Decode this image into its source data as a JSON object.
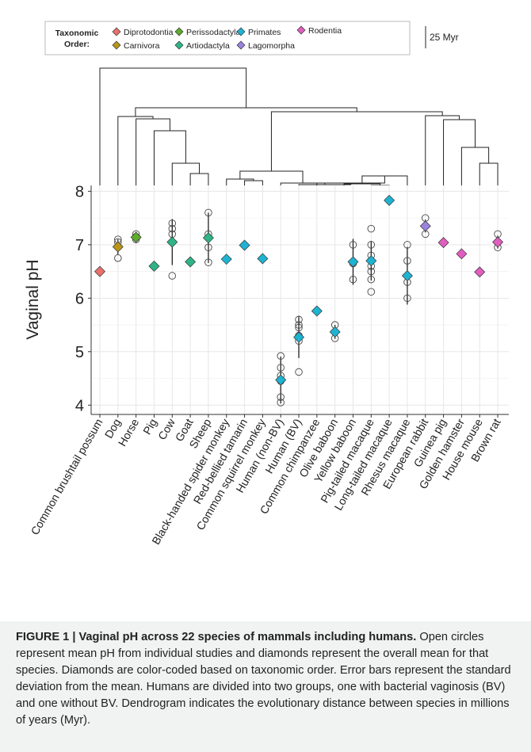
{
  "legend": {
    "title_line1": "Taxonomic",
    "title_line2": "Order:",
    "items": [
      {
        "label": "Diprotodontia",
        "color": "#e8716d"
      },
      {
        "label": "Carnivora",
        "color": "#b8961a"
      },
      {
        "label": "Perissodactyla",
        "color": "#5eab2e"
      },
      {
        "label": "Artiodactyla",
        "color": "#2eb585"
      },
      {
        "label": "Primates",
        "color": "#1fb3d2"
      },
      {
        "label": "Lagomorpha",
        "color": "#9b82dc"
      },
      {
        "label": "Rodentia",
        "color": "#e05ec0"
      }
    ],
    "scale_label": "25 Myr"
  },
  "chart_data": {
    "type": "scatter",
    "title": "",
    "xlabel": "",
    "ylabel": "Vaginal pH",
    "ylim": [
      3.9,
      8.05
    ],
    "yticks": [
      4,
      5,
      6,
      7,
      8
    ],
    "grid": true,
    "categories": [
      "Common brushtail possum",
      "Dog",
      "Horse",
      "Pig",
      "Cow",
      "Goat",
      "Sheep",
      "Black-handed spider monkey",
      "Red-bellied tamarin",
      "Common squirrel monkey",
      "Human (non-BV)",
      "Human (BV)",
      "Common chimpanzee",
      "Olive baboon",
      "Yellow baboon",
      "Pig-tailed macaque",
      "Long-tailed macaque",
      "Rhesus macaque",
      "European rabbit",
      "Guinea pig",
      "Golden hamster",
      "House mouse",
      "Brown rat"
    ],
    "species_order": [
      "Diprotodontia",
      "Carnivora",
      "Perissodactyla",
      "Artiodactyla",
      "Artiodactyla",
      "Artiodactyla",
      "Artiodactyla",
      "Primates",
      "Primates",
      "Primates",
      "Primates",
      "Primates",
      "Primates",
      "Primates",
      "Primates",
      "Primates",
      "Primates",
      "Primates",
      "Lagomorpha",
      "Rodentia",
      "Rodentia",
      "Rodentia",
      "Rodentia"
    ],
    "means": [
      6.5,
      6.96,
      7.14,
      6.6,
      7.05,
      6.68,
      7.13,
      6.73,
      6.99,
      6.74,
      4.47,
      5.27,
      5.76,
      5.37,
      6.68,
      6.7,
      7.83,
      6.42,
      7.35,
      7.04,
      6.83,
      6.49,
      7.05
    ],
    "sd": [
      0,
      0.14,
      0.05,
      0,
      0.43,
      0,
      0.47,
      0,
      0,
      0,
      0.44,
      0.39,
      0,
      0.13,
      0.43,
      0.37,
      0,
      0.54,
      0.12,
      0,
      0,
      0,
      0.12
    ],
    "studies": [
      [],
      [
        6.75,
        7.05,
        7.1
      ],
      [
        7.1,
        7.15,
        7.2
      ],
      [],
      [
        6.42,
        7.2,
        7.3,
        7.4
      ],
      [],
      [
        6.67,
        6.95,
        7.2,
        7.6
      ],
      [],
      [],
      [],
      [
        4.05,
        4.15,
        4.45,
        4.55,
        4.7,
        4.92
      ],
      [
        4.62,
        5.2,
        5.3,
        5.45,
        5.5,
        5.6
      ],
      [],
      [
        5.25,
        5.37,
        5.5
      ],
      [
        6.35,
        6.65,
        7.0
      ],
      [
        6.12,
        6.35,
        6.5,
        6.6,
        6.8,
        7.0,
        7.3
      ],
      [],
      [
        6.0,
        6.3,
        6.7,
        7.0
      ],
      [
        7.2,
        7.35,
        7.5
      ],
      [],
      [],
      [],
      [
        6.95,
        7.2
      ]
    ]
  },
  "caption": {
    "label": "FIGURE 1 | Vaginal pH across 22 species of mammals including humans.",
    "text": " Open circles represent mean pH from individual studies and diamonds represent the overall mean for that species. Diamonds are color-coded based on taxonomic order. Error bars represent the standard deviation from the mean. Humans are divided into two groups, one with bacterial vaginosis (BV) and one without BV. Dendrogram indicates the evolutionary distance between species in millions of years (Myr)."
  }
}
